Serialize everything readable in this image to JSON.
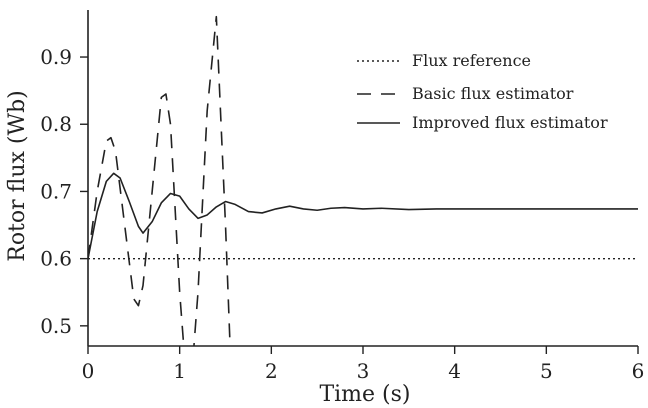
{
  "chart_data": {
    "type": "line",
    "title": "",
    "xlabel": "Time (s)",
    "ylabel": "Rotor flux (Wb)",
    "xlim": [
      0,
      6
    ],
    "ylim": [
      0.47,
      0.97
    ],
    "xticks": [
      0,
      1,
      2,
      3,
      4,
      5,
      6
    ],
    "yticks": [
      0.5,
      0.6,
      0.7,
      0.8,
      0.9
    ],
    "xtick_labels": [
      "0",
      "1",
      "2",
      "3",
      "4",
      "5",
      "6"
    ],
    "ytick_labels": [
      "0.5",
      "0.6",
      "0.7",
      "0.8",
      "0.9"
    ],
    "grid": false,
    "legend_position": "top-right",
    "series": [
      {
        "name": "Flux reference",
        "style": "dotted",
        "color": "#222222",
        "x": [
          0,
          6
        ],
        "y": [
          0.6,
          0.6
        ]
      },
      {
        "name": "Basic flux estimator",
        "style": "dashed",
        "color": "#222222",
        "x": [
          0,
          0.1,
          0.2,
          0.25,
          0.3,
          0.4,
          0.5,
          0.55,
          0.6,
          0.7,
          0.8,
          0.85,
          0.9,
          1.0,
          1.1,
          1.2,
          1.3,
          1.4,
          1.5,
          1.55
        ],
        "y": [
          0.6,
          0.7,
          0.775,
          0.78,
          0.76,
          0.65,
          0.54,
          0.53,
          0.56,
          0.7,
          0.84,
          0.845,
          0.8,
          0.55,
          0.37,
          0.55,
          0.82,
          0.96,
          0.65,
          0.47
        ]
      },
      {
        "name": "Improved flux estimator",
        "style": "solid",
        "color": "#222222",
        "x": [
          0,
          0.1,
          0.2,
          0.28,
          0.35,
          0.45,
          0.55,
          0.6,
          0.7,
          0.8,
          0.9,
          1.0,
          1.1,
          1.2,
          1.3,
          1.4,
          1.5,
          1.6,
          1.75,
          1.9,
          2.05,
          2.2,
          2.35,
          2.5,
          2.65,
          2.8,
          3.0,
          3.2,
          3.5,
          3.8,
          4.2,
          4.6,
          5.0,
          5.5,
          6.0
        ],
        "y": [
          0.6,
          0.67,
          0.715,
          0.727,
          0.72,
          0.685,
          0.648,
          0.638,
          0.655,
          0.683,
          0.697,
          0.693,
          0.674,
          0.66,
          0.665,
          0.677,
          0.685,
          0.681,
          0.67,
          0.668,
          0.674,
          0.678,
          0.674,
          0.672,
          0.675,
          0.676,
          0.674,
          0.675,
          0.673,
          0.674,
          0.674,
          0.674,
          0.674,
          0.674,
          0.674
        ]
      }
    ]
  }
}
